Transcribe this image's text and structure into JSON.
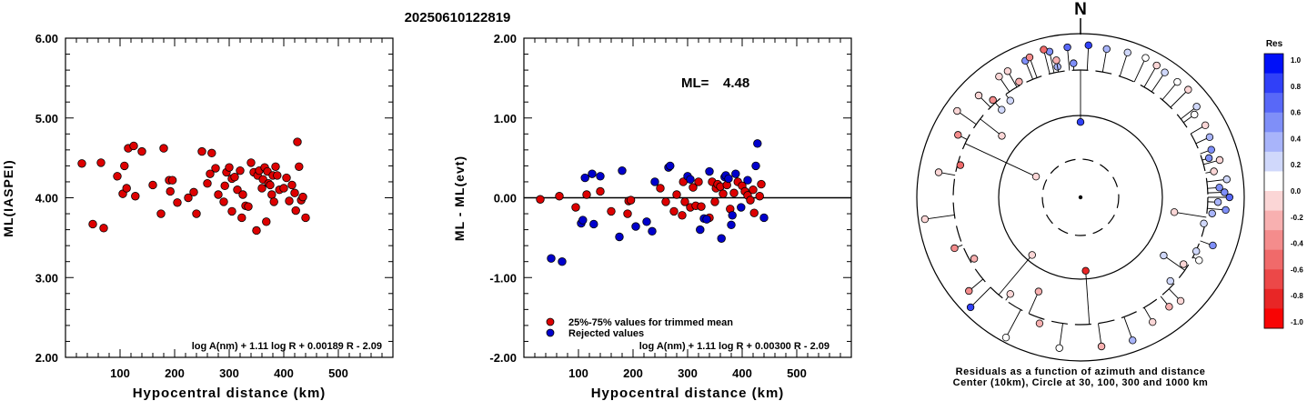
{
  "page_title": "20250610122819",
  "chart_data": [
    {
      "id": "left",
      "type": "scatter",
      "xlabel": "Hypocentral distance (km)",
      "ylabel": "ML(IASPEI)",
      "xlim": [
        0,
        600
      ],
      "ylim": [
        2.0,
        6.0
      ],
      "xticks": [
        "100",
        "200",
        "300",
        "400",
        "500"
      ],
      "yticks": [
        "2.00",
        "3.00",
        "4.00",
        "5.00",
        "6.00"
      ],
      "formula": "log A(nm) + 1.11 log R + 0.00189 R - 2.09",
      "series": [
        {
          "color": "#dd0000",
          "points": [
            [
              30,
              4.43
            ],
            [
              50,
              3.67
            ],
            [
              65,
              4.44
            ],
            [
              70,
              3.62
            ],
            [
              95,
              4.27
            ],
            [
              105,
              4.05
            ],
            [
              108,
              4.4
            ],
            [
              112,
              4.12
            ],
            [
              115,
              4.62
            ],
            [
              125,
              4.65
            ],
            [
              128,
              4.02
            ],
            [
              140,
              4.58
            ],
            [
              160,
              4.16
            ],
            [
              175,
              3.8
            ],
            [
              180,
              4.62
            ],
            [
              190,
              4.22
            ],
            [
              192,
              4.08
            ],
            [
              196,
              4.22
            ],
            [
              205,
              3.94
            ],
            [
              225,
              4.0
            ],
            [
              235,
              4.07
            ],
            [
              240,
              3.8
            ],
            [
              250,
              4.58
            ],
            [
              260,
              4.18
            ],
            [
              265,
              4.3
            ],
            [
              268,
              4.56
            ],
            [
              275,
              4.37
            ],
            [
              280,
              4.04
            ],
            [
              290,
              3.95
            ],
            [
              292,
              4.15
            ],
            [
              295,
              4.32
            ],
            [
              300,
              4.38
            ],
            [
              305,
              3.83
            ],
            [
              305,
              4.24
            ],
            [
              310,
              4.26
            ],
            [
              315,
              4.1
            ],
            [
              320,
              4.34
            ],
            [
              323,
              3.75
            ],
            [
              325,
              4.04
            ],
            [
              330,
              3.9
            ],
            [
              335,
              3.89
            ],
            [
              340,
              4.44
            ],
            [
              345,
              4.32
            ],
            [
              350,
              3.59
            ],
            [
              352,
              4.28
            ],
            [
              355,
              4.34
            ],
            [
              360,
              4.12
            ],
            [
              362,
              4.23
            ],
            [
              365,
              4.38
            ],
            [
              368,
              3.7
            ],
            [
              370,
              4.33
            ],
            [
              372,
              4.18
            ],
            [
              375,
              4.16
            ],
            [
              378,
              4.04
            ],
            [
              380,
              4.28
            ],
            [
              382,
              3.95
            ],
            [
              385,
              4.39
            ],
            [
              388,
              4.28
            ],
            [
              392,
              4.1
            ],
            [
              400,
              4.12
            ],
            [
              405,
              4.25
            ],
            [
              410,
              3.96
            ],
            [
              415,
              4.16
            ],
            [
              420,
              4.06
            ],
            [
              422,
              3.84
            ],
            [
              425,
              4.7
            ],
            [
              428,
              4.39
            ],
            [
              432,
              3.97
            ],
            [
              435,
              4.01
            ],
            [
              440,
              3.75
            ]
          ]
        }
      ]
    },
    {
      "id": "middle",
      "type": "scatter",
      "xlabel": "Hypocentral distance (km)",
      "ylabel": "ML - ML(evt)",
      "xlim": [
        0,
        600
      ],
      "ylim": [
        -2.0,
        2.0
      ],
      "xticks": [
        "100",
        "200",
        "300",
        "400",
        "500"
      ],
      "yticks": [
        "-2.00",
        "-1.00",
        "0.00",
        "1.00",
        "2.00"
      ],
      "annotation_label": "ML=",
      "annotation_value": "4.48",
      "formula": "log A(nm) + 1.11 log R + 0.00300 R - 2.09",
      "legend_position": "bottom-left",
      "series": [
        {
          "name": "25%-75% values for trimmed mean",
          "color": "#dd0000",
          "points": [
            [
              30,
              -0.02
            ],
            [
              65,
              0.02
            ],
            [
              95,
              -0.12
            ],
            [
              115,
              0.04
            ],
            [
              140,
              0.08
            ],
            [
              160,
              -0.17
            ],
            [
              190,
              -0.2
            ],
            [
              192,
              -0.04
            ],
            [
              196,
              -0.03
            ],
            [
              250,
              0.12
            ],
            [
              260,
              -0.05
            ],
            [
              275,
              -0.17
            ],
            [
              280,
              0.04
            ],
            [
              290,
              -0.22
            ],
            [
              292,
              0.2
            ],
            [
              295,
              -0.05
            ],
            [
              305,
              -0.12
            ],
            [
              310,
              0.13
            ],
            [
              315,
              -0.1
            ],
            [
              320,
              0.2
            ],
            [
              325,
              -0.11
            ],
            [
              340,
              -0.25
            ],
            [
              345,
              0.2
            ],
            [
              350,
              -0.05
            ],
            [
              352,
              0.12
            ],
            [
              355,
              0.17
            ],
            [
              360,
              0.14
            ],
            [
              365,
              0.05
            ],
            [
              372,
              0.16
            ],
            [
              378,
              -0.14
            ],
            [
              385,
              0.06
            ],
            [
              392,
              0.2
            ],
            [
              400,
              0.15
            ],
            [
              405,
              0.08
            ],
            [
              410,
              0.03
            ],
            [
              415,
              -0.03
            ],
            [
              420,
              0.1
            ],
            [
              422,
              -0.19
            ],
            [
              432,
              0.02
            ],
            [
              435,
              0.17
            ]
          ]
        },
        {
          "name": "Rejected values",
          "color": "#0000cc",
          "points": [
            [
              50,
              -0.76
            ],
            [
              70,
              -0.8
            ],
            [
              105,
              -0.32
            ],
            [
              108,
              -0.28
            ],
            [
              112,
              0.25
            ],
            [
              125,
              0.3
            ],
            [
              128,
              -0.33
            ],
            [
              140,
              0.27
            ],
            [
              175,
              -0.49
            ],
            [
              180,
              0.34
            ],
            [
              205,
              -0.36
            ],
            [
              225,
              -0.3
            ],
            [
              235,
              -0.42
            ],
            [
              240,
              0.2
            ],
            [
              265,
              0.38
            ],
            [
              268,
              0.4
            ],
            [
              300,
              0.27
            ],
            [
              305,
              0.23
            ],
            [
              323,
              -0.4
            ],
            [
              330,
              -0.26
            ],
            [
              335,
              -0.27
            ],
            [
              340,
              0.33
            ],
            [
              362,
              -0.51
            ],
            [
              368,
              0.26
            ],
            [
              370,
              0.28
            ],
            [
              375,
              0.24
            ],
            [
              380,
              -0.34
            ],
            [
              382,
              -0.22
            ],
            [
              388,
              0.3
            ],
            [
              398,
              -0.12
            ],
            [
              410,
              0.22
            ],
            [
              425,
              0.4
            ],
            [
              428,
              0.68
            ],
            [
              440,
              -0.25
            ]
          ]
        }
      ]
    },
    {
      "id": "right",
      "type": "polar",
      "north_label": "N",
      "caption_line1": "Residuals as a function of azimuth and distance",
      "caption_line2": "Center (10km), Circle at 30, 100, 300 and 1000 km",
      "colorbar_title": "Res",
      "colorbar_ticks": [
        "1.0",
        "0.8",
        "0.6",
        "0.4",
        "0.2",
        "0.0",
        "-0.2",
        "-0.4",
        "-0.6",
        "-0.8",
        "-1.0"
      ],
      "colorbar_colors": [
        "#0010f8",
        "#3040f8",
        "#5868f8",
        "#7f8ff8",
        "#a8b4fa",
        "#d0d8fb",
        "#ffffff",
        "#fbd6d6",
        "#f8b0b0",
        "#f48c8c",
        "#f06a6a",
        "#ec4848",
        "#e82626",
        "#f80404"
      ],
      "stations": [
        {
          "az": 0,
          "r": 0.46,
          "res": 0.85
        },
        {
          "az": 176,
          "r": 0.45,
          "res": -0.85
        },
        {
          "az": -65,
          "r": 0.3,
          "res": 0.0
        },
        {
          "az": -52,
          "r": 0.61,
          "res": 0.0
        },
        {
          "az": -42,
          "r": 0.72,
          "res": 0.3
        },
        {
          "az": -36,
          "r": 0.73,
          "res": 0.2
        },
        {
          "az": -10,
          "r": 0.81,
          "res": 0.4
        },
        {
          "az": -3,
          "r": 0.82,
          "res": 0.6
        },
        {
          "az": -45,
          "r": 0.88,
          "res": 0.0
        },
        {
          "az": -30,
          "r": 0.89,
          "res": 0.0
        },
        {
          "az": -22,
          "r": 0.9,
          "res": 0.5
        },
        {
          "az": -12,
          "r": 0.91,
          "res": 0.6
        },
        {
          "az": -5,
          "r": 0.92,
          "res": 0.7
        },
        {
          "az": 3,
          "r": 0.93,
          "res": 0.8
        },
        {
          "az": 10,
          "r": 0.92,
          "res": 0.4
        },
        {
          "az": 18,
          "r": 0.93,
          "res": 0.3
        },
        {
          "az": 25,
          "r": 0.94,
          "res": 0.1
        },
        {
          "az": 30,
          "r": 0.93,
          "res": 0.0
        },
        {
          "az": 34,
          "r": 0.92,
          "res": 0.2
        },
        {
          "az": 40,
          "r": 0.92,
          "res": 0.1
        },
        {
          "az": 45,
          "r": 0.93,
          "res": 0.0
        },
        {
          "az": 52,
          "r": 0.9,
          "res": 0.2
        },
        {
          "az": 54,
          "r": 0.86,
          "res": 0.1
        },
        {
          "az": 60,
          "r": 0.88,
          "res": 0.0
        },
        {
          "az": 65,
          "r": 0.87,
          "res": 0.4
        },
        {
          "az": 70,
          "r": 0.85,
          "res": 0.5
        },
        {
          "az": 73,
          "r": 0.82,
          "res": 0.6
        },
        {
          "az": 75,
          "r": 0.88,
          "res": 0.0
        },
        {
          "az": 79,
          "r": 0.83,
          "res": 0.0
        },
        {
          "az": 83,
          "r": 0.9,
          "res": 0.3
        },
        {
          "az": 86,
          "r": 0.85,
          "res": 0.5
        },
        {
          "az": 88,
          "r": 0.88,
          "res": 0.6
        },
        {
          "az": 90,
          "r": 0.91,
          "res": 0.7
        },
        {
          "az": 92,
          "r": 0.84,
          "res": 0.4
        },
        {
          "az": 95,
          "r": 0.89,
          "res": 0.6
        },
        {
          "az": 97,
          "r": 0.81,
          "res": 0.4
        },
        {
          "az": 99,
          "r": 0.58,
          "res": -0.1
        },
        {
          "az": 102,
          "r": 0.77,
          "res": 0.2
        },
        {
          "az": 110,
          "r": 0.86,
          "res": 0.5
        },
        {
          "az": 115,
          "r": 0.78,
          "res": 0.3
        },
        {
          "az": 118,
          "r": 0.82,
          "res": 0.1
        },
        {
          "az": 123,
          "r": 0.75,
          "res": 0.0
        },
        {
          "az": 125,
          "r": 0.62,
          "res": 0.3
        },
        {
          "az": 133,
          "r": 0.75,
          "res": 0.2
        },
        {
          "az": 136,
          "r": 0.88,
          "res": 0.0
        },
        {
          "az": 141,
          "r": 0.86,
          "res": -0.2
        },
        {
          "az": 150,
          "r": 0.88,
          "res": -0.1
        },
        {
          "az": 160,
          "r": 0.93,
          "res": 0.4
        },
        {
          "az": 172,
          "r": 0.92,
          "res": -0.3
        },
        {
          "az": 188,
          "r": 0.93,
          "res": 0.1
        },
        {
          "az": 198,
          "r": 0.81,
          "res": -0.3
        },
        {
          "az": 204,
          "r": 0.63,
          "res": -0.3
        },
        {
          "az": 208,
          "r": 0.97,
          "res": 0.1
        },
        {
          "az": 216,
          "r": 0.73,
          "res": -0.1
        },
        {
          "az": 220,
          "r": 0.46,
          "res": 0.0
        },
        {
          "az": 225,
          "r": 0.95,
          "res": 0.8
        },
        {
          "az": 230,
          "r": 0.89,
          "res": -0.4
        },
        {
          "az": 240,
          "r": 0.75,
          "res": -0.2
        },
        {
          "az": 248,
          "r": 0.83,
          "res": -0.4
        },
        {
          "az": 262,
          "r": 0.96,
          "res": 0.0
        },
        {
          "az": 280,
          "r": 0.88,
          "res": 0.0
        },
        {
          "az": 285,
          "r": 0.76,
          "res": -0.5
        },
        {
          "az": 297,
          "r": 0.84,
          "res": -0.4
        },
        {
          "az": 305,
          "r": 0.92,
          "res": -0.1
        },
        {
          "az": 318,
          "r": 0.8,
          "res": -0.4
        },
        {
          "az": 326,
          "r": 0.89,
          "res": 0.0
        },
        {
          "az": 332,
          "r": 0.8,
          "res": -0.3
        },
        {
          "az": 340,
          "r": 0.91,
          "res": -0.4
        },
        {
          "az": 346,
          "r": 0.93,
          "res": -0.5
        },
        {
          "az": 350,
          "r": 0.85,
          "res": -0.3
        }
      ]
    }
  ]
}
